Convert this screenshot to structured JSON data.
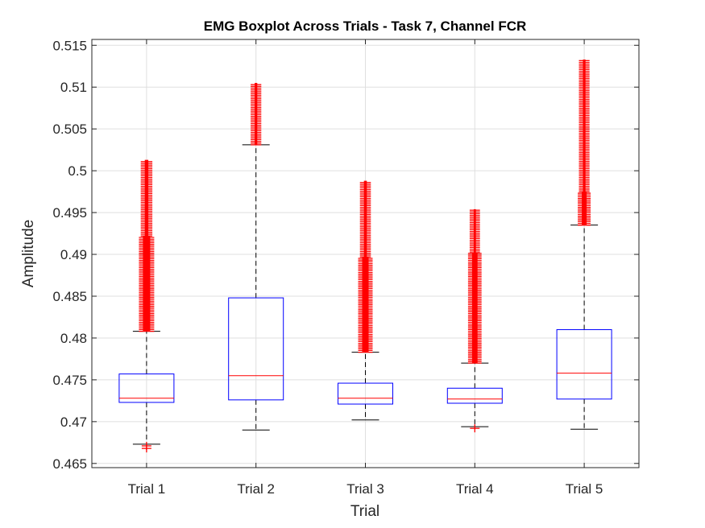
{
  "chart_data": {
    "type": "box",
    "title": "EMG Boxplot Across Trials - Task 7, Channel FCR",
    "xlabel": "Trial",
    "ylabel": "Amplitude",
    "ylim": [
      0.4645,
      0.5157
    ],
    "yticks": [
      0.465,
      0.47,
      0.475,
      0.48,
      0.485,
      0.49,
      0.495,
      0.5,
      0.505,
      0.51,
      0.515
    ],
    "ytick_labels": [
      "0.465",
      "0.47",
      "0.475",
      "0.48",
      "0.485",
      "0.49",
      "0.495",
      "0.5",
      "0.505",
      "0.51",
      "0.515"
    ],
    "categories": [
      "Trial 1",
      "Trial 2",
      "Trial 3",
      "Trial 4",
      "Trial 5"
    ],
    "grid": true,
    "colors": {
      "box": "#0000ff",
      "median": "#ff0000",
      "whisker": "#000000",
      "outlier": "#ff0000",
      "grid": "#dfdfdf",
      "axis": "#262626"
    },
    "boxes": [
      {
        "name": "Trial 1",
        "whisker_low": 0.4673,
        "q1": 0.4723,
        "median": 0.4728,
        "q3": 0.4757,
        "whisker_high": 0.4808,
        "outlier_bands": [
          [
            0.4808,
            0.4922,
            4.5
          ],
          [
            0.4922,
            0.5013,
            2.2
          ]
        ],
        "outliers_low": [
          0.4671,
          0.4668
        ]
      },
      {
        "name": "Trial 2",
        "whisker_low": 0.469,
        "q1": 0.4726,
        "median": 0.4755,
        "q3": 0.4848,
        "whisker_high": 0.5031,
        "outlier_bands": [
          [
            0.5031,
            0.5105,
            1.6
          ]
        ],
        "outliers_low": []
      },
      {
        "name": "Trial 3",
        "whisker_low": 0.4702,
        "q1": 0.4721,
        "median": 0.4728,
        "q3": 0.4746,
        "whisker_high": 0.4783,
        "outlier_bands": [
          [
            0.4783,
            0.4897,
            4.0
          ],
          [
            0.4897,
            0.4988,
            1.8
          ]
        ],
        "outliers_low": []
      },
      {
        "name": "Trial 4",
        "whisker_low": 0.4694,
        "q1": 0.4722,
        "median": 0.4727,
        "q3": 0.474,
        "whisker_high": 0.477,
        "outlier_bands": [
          [
            0.477,
            0.4902,
            3.4
          ],
          [
            0.4902,
            0.4954,
            1.4
          ]
        ],
        "outliers_low": [
          0.4692
        ]
      },
      {
        "name": "Trial 5",
        "whisker_low": 0.4691,
        "q1": 0.4727,
        "median": 0.4758,
        "q3": 0.481,
        "whisker_high": 0.4935,
        "outlier_bands": [
          [
            0.4935,
            0.4975,
            3.0
          ],
          [
            0.4975,
            0.5133,
            1.6
          ]
        ],
        "outliers_low": []
      }
    ]
  }
}
